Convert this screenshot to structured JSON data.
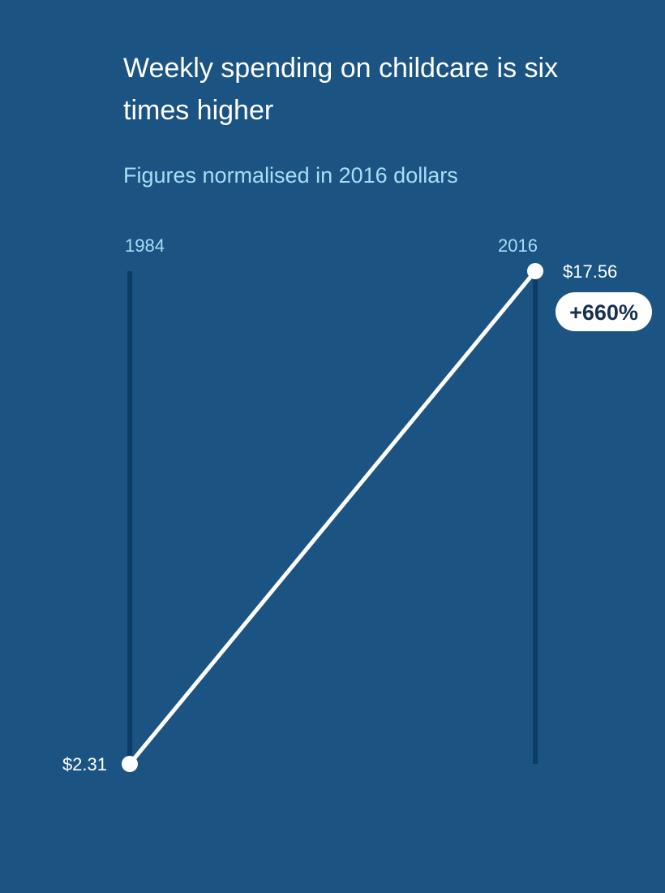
{
  "title": "Weekly spending on childcare is six times higher",
  "subtitle": "Figures normalised in 2016 dollars",
  "colors": {
    "background": "#1b5482",
    "axis_line": "#0d3c66",
    "slope_line": "#ffffff",
    "year_label": "#a9ddf7",
    "value_label": "#ffffff",
    "badge_fill": "#ffffff",
    "badge_text": "#16314f"
  },
  "chart_data": {
    "type": "line",
    "x": [
      "1984",
      "2016"
    ],
    "series": [
      {
        "values": [
          2.31,
          17.56
        ]
      }
    ],
    "value_labels": [
      "$2.31",
      "$17.56"
    ],
    "change_label": "+660%",
    "ylim": [
      2.31,
      17.56
    ],
    "grid": false
  }
}
